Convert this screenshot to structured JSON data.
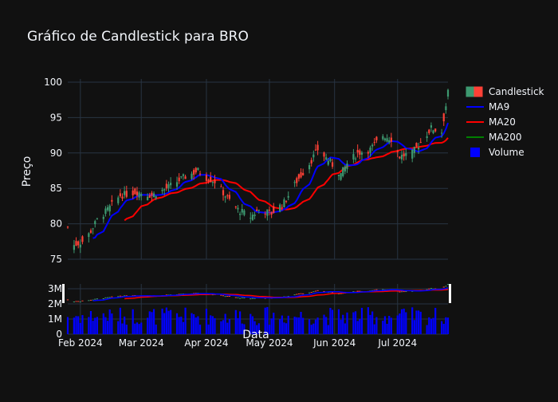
{
  "chart_data": {
    "type": "candlestick",
    "title": "Gráfico de Candlestick para BRO",
    "xlabel": "Data",
    "ylabel": "Preço",
    "ylim": [
      75,
      100
    ],
    "volume_ylim": [
      0,
      3000000
    ],
    "grid": true,
    "legend_position": "right",
    "colors": {
      "background": "#111111",
      "grid": "#283442",
      "up": "#3D9970",
      "down": "#FF4136",
      "ma9": "#0000ff",
      "ma20": "#ff0000",
      "ma200": "#008000",
      "volume": "#0000ff",
      "text": "#f2f5fa"
    },
    "legend": [
      "Candlestick",
      "MA9",
      "MA20",
      "MA200",
      "Volume"
    ],
    "x_ticks": [
      "Feb 2024",
      "Mar 2024",
      "Apr 2024",
      "May 2024",
      "Jun 2024",
      "Jul 2024"
    ],
    "y_ticks": [
      "75",
      "80",
      "85",
      "90",
      "95",
      "100"
    ],
    "volume_ticks": [
      "0",
      "1M",
      "2M",
      "3M"
    ],
    "date_start": "2024-01-26",
    "date_end": "2024-07-25",
    "close_anchors": [
      [
        "2024-01-26",
        79.5
      ],
      [
        "2024-01-29",
        77.0
      ],
      [
        "2024-02-02",
        77.5
      ],
      [
        "2024-02-05",
        78.5
      ],
      [
        "2024-02-09",
        80.5
      ],
      [
        "2024-02-14",
        82.0
      ],
      [
        "2024-02-20",
        84.0
      ],
      [
        "2024-02-28",
        84.5
      ],
      [
        "2024-03-06",
        84.0
      ],
      [
        "2024-03-13",
        85.0
      ],
      [
        "2024-03-21",
        86.5
      ],
      [
        "2024-03-28",
        87.5
      ],
      [
        "2024-04-01",
        86.5
      ],
      [
        "2024-04-05",
        86.0
      ],
      [
        "2024-04-10",
        84.0
      ],
      [
        "2024-04-16",
        82.0
      ],
      [
        "2024-04-22",
        81.0
      ],
      [
        "2024-04-26",
        82.0
      ],
      [
        "2024-05-02",
        81.5
      ],
      [
        "2024-05-08",
        83.0
      ],
      [
        "2024-05-14",
        86.0
      ],
      [
        "2024-05-20",
        88.5
      ],
      [
        "2024-05-24",
        90.5
      ],
      [
        "2024-05-29",
        89.0
      ],
      [
        "2024-06-04",
        87.0
      ],
      [
        "2024-06-07",
        88.5
      ],
      [
        "2024-06-12",
        90.0
      ],
      [
        "2024-06-18",
        90.5
      ],
      [
        "2024-06-24",
        92.5
      ],
      [
        "2024-06-28",
        92.0
      ],
      [
        "2024-07-02",
        89.5
      ],
      [
        "2024-07-08",
        90.0
      ],
      [
        "2024-07-12",
        91.5
      ],
      [
        "2024-07-17",
        93.5
      ],
      [
        "2024-07-22",
        93.0
      ],
      [
        "2024-07-25",
        98.5
      ]
    ]
  }
}
